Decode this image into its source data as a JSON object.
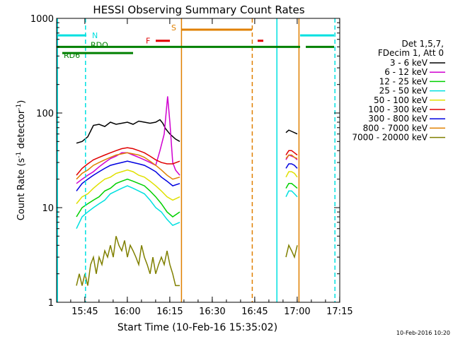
{
  "chart_data": {
    "type": "line",
    "title": "HESSI Observing Summary Count Rates",
    "xlabel": "Start Time (10-Feb-16 15:35:02)",
    "ylabel_prefix": "Count Rate (s",
    "ylabel_sup1": "-1",
    "ylabel_mid": " detector",
    "ylabel_sup2": "-1",
    "ylabel_suffix": ")",
    "yscale": "log",
    "ylim": [
      1,
      1000
    ],
    "xlim": [
      0,
      100
    ],
    "x_unit": "minutes after 15:35:02",
    "x_ticks": [
      {
        "value": 9.97,
        "label": "15:45"
      },
      {
        "value": 24.97,
        "label": "16:00"
      },
      {
        "value": 39.97,
        "label": "16:15"
      },
      {
        "value": 54.97,
        "label": "16:30"
      },
      {
        "value": 69.97,
        "label": "16:45"
      },
      {
        "value": 84.97,
        "label": "17:00"
      },
      {
        "value": 99.97,
        "label": "17:15"
      }
    ],
    "y_ticks": [
      {
        "value": 1,
        "label": "1"
      },
      {
        "value": 10,
        "label": "10"
      },
      {
        "value": 100,
        "label": "100"
      },
      {
        "value": 1000,
        "label": "1000"
      }
    ],
    "legend_header": [
      "Det 1,5,7,",
      "FDecim 1, Att 0"
    ],
    "legend_placement": "right",
    "series": [
      {
        "name": "3 - 6 keV",
        "color": "#000000",
        "segments": [
          {
            "x": [
              7,
              9,
              11,
              13,
              15,
              17,
              19,
              21,
              23,
              25,
              27,
              29,
              31,
              33,
              35,
              36.5,
              37.5,
              38.5,
              40,
              42,
              43.5
            ],
            "y": [
              48,
              50,
              56,
              74,
              76,
              72,
              80,
              76,
              78,
              80,
              76,
              82,
              80,
              78,
              80,
              85,
              78,
              68,
              60,
              53,
              50
            ]
          },
          {
            "x": [
              81,
              82,
              83,
              84,
              85
            ],
            "y": [
              62,
              66,
              64,
              62,
              60
            ]
          }
        ]
      },
      {
        "name": "6 - 12 keV",
        "color": "#d000d0",
        "segments": [
          {
            "x": [
              7,
              9,
              11,
              13,
              15,
              17,
              19,
              21,
              23,
              25,
              27,
              29,
              31,
              33,
              35,
              36.5,
              38,
              39.2,
              40,
              41,
              42,
              43.5
            ],
            "y": [
              18,
              20,
              22,
              24,
              27,
              30,
              33,
              35,
              38,
              38,
              36,
              34,
              32,
              30,
              28,
              40,
              60,
              150,
              80,
              30,
              25,
              22
            ]
          },
          {
            "x": [
              81,
              82,
              83,
              84,
              85
            ],
            "y": [
              32,
              36,
              35,
              34,
              32
            ]
          }
        ]
      },
      {
        "name": "12 - 25 keV",
        "color": "#00d000",
        "segments": [
          {
            "x": [
              7,
              9,
              11,
              13,
              15,
              17,
              19,
              21,
              23,
              25,
              27,
              29,
              31,
              33,
              35,
              37,
              39,
              41,
              43.5
            ],
            "y": [
              8,
              10,
              11,
              12,
              13,
              15,
              16,
              18,
              19,
              20,
              19,
              18,
              17,
              15,
              13,
              11,
              9,
              8,
              9
            ]
          },
          {
            "x": [
              81,
              82,
              83,
              84,
              85
            ],
            "y": [
              16,
              18,
              18,
              17,
              16
            ]
          }
        ]
      },
      {
        "name": "25 - 50 keV",
        "color": "#00e0e0",
        "segments": [
          {
            "x": [
              7,
              9,
              11,
              13,
              15,
              17,
              19,
              21,
              23,
              25,
              27,
              29,
              31,
              33,
              35,
              37,
              39,
              41,
              43.5
            ],
            "y": [
              6,
              8,
              9,
              10,
              11,
              12,
              14,
              15,
              16,
              17,
              16,
              15,
              14,
              12,
              10,
              9,
              7.5,
              6.5,
              7
            ]
          },
          {
            "x": [
              81,
              82,
              83,
              84,
              85
            ],
            "y": [
              13,
              15,
              15,
              14,
              13
            ]
          }
        ]
      },
      {
        "name": "50 - 100 keV",
        "color": "#e0e000",
        "segments": [
          {
            "x": [
              7,
              9,
              11,
              13,
              15,
              17,
              19,
              21,
              23,
              25,
              27,
              29,
              31,
              33,
              35,
              37,
              39,
              41,
              43.5
            ],
            "y": [
              11,
              13,
              14,
              16,
              18,
              20,
              21,
              23,
              24,
              25,
              24,
              22,
              21,
              19,
              17,
              15,
              13,
              12,
              13
            ]
          },
          {
            "x": [
              81,
              82,
              83,
              84,
              85
            ],
            "y": [
              21,
              24,
              24,
              23,
              21
            ]
          }
        ]
      },
      {
        "name": "100 - 300 keV",
        "color": "#e00000",
        "segments": [
          {
            "x": [
              7,
              9,
              11,
              13,
              15,
              17,
              19,
              21,
              23,
              25,
              27,
              29,
              31,
              33,
              35,
              37,
              39,
              41,
              43.5
            ],
            "y": [
              22,
              26,
              29,
              32,
              34,
              36,
              38,
              40,
              42,
              43,
              42,
              40,
              38,
              35,
              32,
              30,
              29,
              29,
              31
            ]
          },
          {
            "x": [
              81,
              82,
              83,
              84,
              85
            ],
            "y": [
              36,
              40,
              40,
              38,
              36
            ]
          }
        ]
      },
      {
        "name": "300 - 800 keV",
        "color": "#0000e0",
        "segments": [
          {
            "x": [
              7,
              9,
              11,
              13,
              15,
              17,
              19,
              21,
              23,
              25,
              27,
              29,
              31,
              33,
              35,
              37,
              39,
              41,
              43.5
            ],
            "y": [
              15,
              18,
              20,
              22,
              24,
              26,
              28,
              29,
              30,
              31,
              30,
              29,
              28,
              26,
              24,
              21,
              19,
              17,
              18
            ]
          },
          {
            "x": [
              81,
              82,
              83,
              84,
              85
            ],
            "y": [
              26,
              29,
              29,
              28,
              26
            ]
          }
        ]
      },
      {
        "name": "800 - 7000 keV",
        "color": "#e08000",
        "segments": [
          {
            "x": [
              7,
              9,
              11,
              13,
              15,
              17,
              19,
              21,
              23,
              25,
              27,
              29,
              31,
              33,
              35,
              37,
              39,
              41,
              43.5
            ],
            "y": [
              20,
              23,
              25,
              28,
              30,
              32,
              34,
              36,
              37,
              38,
              37,
              36,
              34,
              31,
              28,
              25,
              22,
              20,
              21
            ]
          },
          {
            "x": [
              81,
              82,
              83,
              84,
              85
            ],
            "y": [
              33,
              36,
              36,
              34,
              33
            ]
          }
        ]
      },
      {
        "name": "7000 - 20000 keV",
        "color": "#808000",
        "segments": [
          {
            "x": [
              7,
              8,
              9,
              10,
              11,
              12,
              13,
              14,
              15,
              16,
              17,
              18,
              19,
              20,
              21,
              22,
              23,
              24,
              25,
              26,
              27,
              28,
              29,
              30,
              31,
              32,
              33,
              34,
              35,
              36,
              37,
              38,
              39,
              40,
              41,
              42,
              43.5
            ],
            "y": [
              1.5,
              2,
              1.5,
              2,
              1.5,
              2.5,
              3,
              2,
              3,
              2.5,
              3.5,
              3,
              4,
              3,
              5,
              4,
              3.5,
              4.5,
              3,
              4,
              3.5,
              3,
              2.5,
              4,
              3,
              2.5,
              2,
              3,
              2,
              2.5,
              3,
              2.5,
              3.5,
              2.5,
              2,
              1.5,
              1.5
            ]
          },
          {
            "x": [
              81,
              82,
              83,
              84,
              85
            ],
            "y": [
              3,
              4,
              3.5,
              3,
              4
            ]
          }
        ]
      }
    ],
    "flag_bars": [
      {
        "label": "N",
        "color": "#00e0e0",
        "segments": [
          [
            0,
            10.5
          ],
          [
            86,
            98
          ]
        ],
        "value": 660
      },
      {
        "label": "RDO",
        "color": "#008000",
        "segments": [
          [
            0,
            10
          ],
          [
            10,
            86
          ],
          [
            88,
            98
          ]
        ],
        "value": 500
      },
      {
        "label": "RD6",
        "color": "#008000",
        "segments": [
          [
            2,
            27
          ]
        ],
        "value": 430
      },
      {
        "label": "F",
        "color": "#e00000",
        "segments": [
          [
            35,
            40
          ]
        ],
        "value": 580
      },
      {
        "label": "S",
        "color": "#e08000",
        "segments": [
          [
            44,
            69
          ]
        ],
        "value": 760
      },
      {
        "label": "",
        "color": "#e00000",
        "segments": [
          [
            71,
            73
          ]
        ],
        "value": 580
      }
    ],
    "vertical_lines": [
      {
        "x": 0.3,
        "color": "#00e0e0",
        "style": "solid"
      },
      {
        "x": 10.2,
        "color": "#00e0e0",
        "style": "dashed"
      },
      {
        "x": 44.1,
        "color": "#e08000",
        "style": "solid"
      },
      {
        "x": 69.1,
        "color": "#e08000",
        "style": "dashed"
      },
      {
        "x": 77.8,
        "color": "#00e0e0",
        "style": "solid"
      },
      {
        "x": 85.6,
        "color": "#e08000",
        "style": "solid"
      },
      {
        "x": 98.3,
        "color": "#00e0e0",
        "style": "dashed"
      }
    ],
    "timestamp": "10-Feb-2016 10:20"
  }
}
